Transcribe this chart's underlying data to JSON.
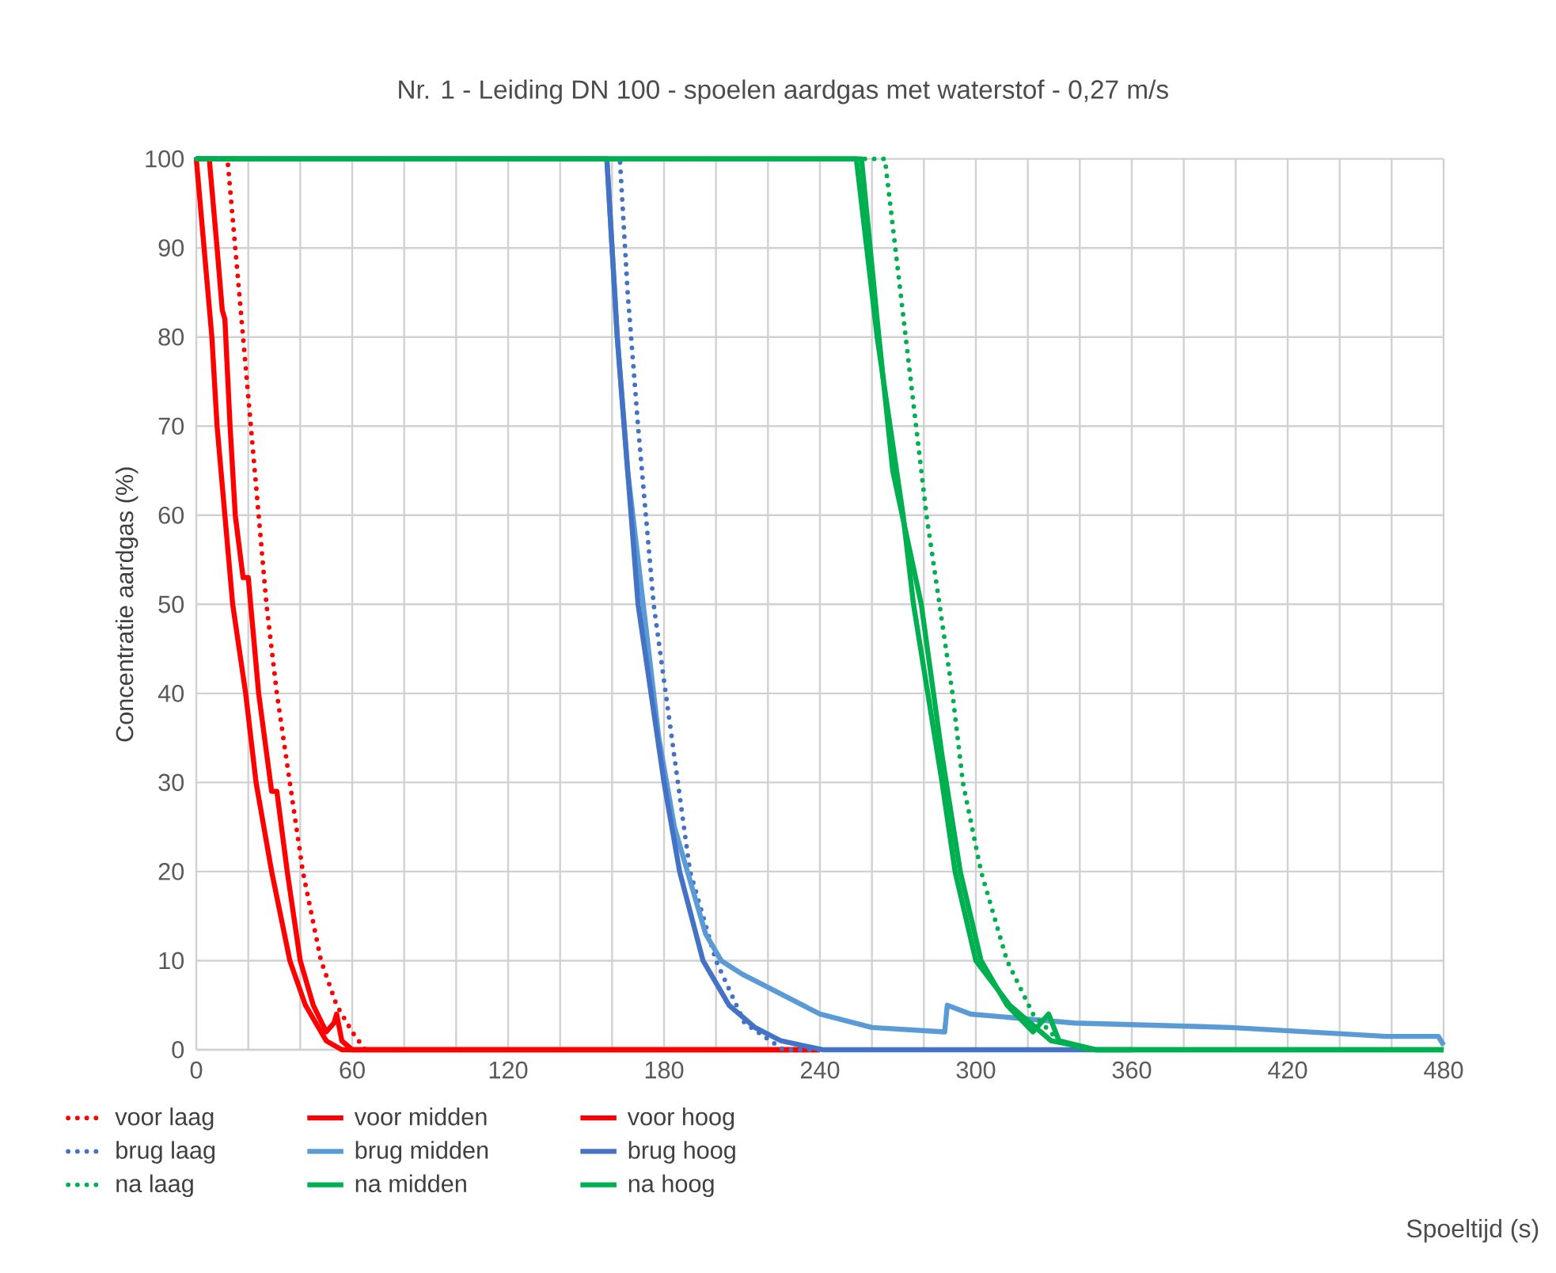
{
  "chart_data": {
    "type": "line",
    "title": "Nr. 1 - Leiding DN 100 - spoelen aardgas met waterstof - 0,27 m/s",
    "annotations": [
      "Spoeltijd (s)"
    ],
    "ylabel": "Concentratie aardgas (%)",
    "xlim": [
      0,
      480
    ],
    "ylim": [
      0,
      100
    ],
    "xticks": [
      0,
      {
        "value": 20,
        "label": null
      },
      {
        "value": 40,
        "label": null
      },
      60,
      {
        "value": 80,
        "label": null
      },
      {
        "value": 100,
        "label": null
      },
      120,
      {
        "value": 140,
        "label": null
      },
      {
        "value": 160,
        "label": null
      },
      180,
      {
        "value": 200,
        "label": null
      },
      {
        "value": 220,
        "label": null
      },
      240,
      {
        "value": 260,
        "label": null
      },
      {
        "value": 280,
        "label": null
      },
      300,
      {
        "value": 320,
        "label": null
      },
      {
        "value": 340,
        "label": null
      },
      360,
      {
        "value": 380,
        "label": null
      },
      {
        "value": 400,
        "label": null
      },
      420,
      {
        "value": 440,
        "label": null
      },
      {
        "value": 460,
        "label": null
      },
      480
    ],
    "yticks": [
      0,
      10,
      20,
      30,
      40,
      50,
      60,
      70,
      80,
      90,
      100
    ],
    "grid": true,
    "legend": "bottom",
    "marker": "none",
    "series": [
      {
        "name": "voor laag",
        "color": "#ff0000",
        "line_style": "dotted",
        "x": [
          0,
          12,
          15,
          18,
          21,
          24,
          27,
          31,
          36,
          41,
          48,
          54,
          60,
          65,
          80
        ],
        "values": [
          100,
          100,
          90,
          80,
          70,
          60,
          50,
          40,
          30,
          20,
          10,
          5,
          2,
          0,
          0
        ]
      },
      {
        "name": "voor midden",
        "color": "#ff0000",
        "line_style": "solid",
        "x": [
          0,
          5,
          8,
          10,
          11,
          13,
          15,
          18,
          20,
          24,
          29,
          31,
          35,
          40,
          45,
          50,
          53,
          54,
          56,
          60,
          240
        ],
        "values": [
          100,
          100,
          90,
          83,
          82,
          70,
          60,
          53,
          53,
          40,
          29,
          29,
          20,
          10,
          5,
          2,
          3,
          4,
          1,
          0,
          0
        ]
      },
      {
        "name": "voor hoog",
        "color": "#ff0000",
        "line_style": "solid",
        "x": [
          0,
          3,
          6,
          8,
          11,
          14,
          19,
          23,
          29,
          36,
          42,
          50,
          56,
          240
        ],
        "values": [
          100,
          90,
          80,
          70,
          60,
          50,
          40,
          30,
          20,
          10,
          5,
          1,
          0,
          0
        ]
      },
      {
        "name": "brug laag",
        "color": "#4472c4",
        "line_style": "dotted",
        "x": [
          0,
          163,
          166,
          170,
          176,
          183,
          190,
          200,
          211,
          226,
          240
        ],
        "values": [
          100,
          100,
          85,
          70,
          50,
          35,
          20,
          10,
          3,
          0,
          0
        ]
      },
      {
        "name": "brug midden",
        "color": "#5b9bd5",
        "line_style": "solid",
        "x": [
          0,
          158,
          162,
          166,
          172,
          178,
          184,
          189,
          196,
          202,
          210,
          220,
          240,
          260,
          288,
          289,
          298,
          338,
          398,
          458,
          478,
          480
        ],
        "values": [
          100,
          100,
          80,
          65,
          50,
          35,
          25,
          20,
          13,
          10,
          8.5,
          7,
          4,
          2.5,
          2,
          5,
          4,
          3,
          2.5,
          1.5,
          1.5,
          0.5
        ]
      },
      {
        "name": "brug  hoog",
        "color": "#4472c4",
        "line_style": "solid",
        "x": [
          0,
          158,
          162,
          170,
          180,
          186,
          195,
          205,
          215,
          225,
          241,
          360
        ],
        "values": [
          100,
          100,
          80,
          50,
          30,
          20,
          10,
          5,
          2.5,
          1,
          0,
          0
        ]
      },
      {
        "name": "na laag",
        "color": "#00b050",
        "line_style": "dotted",
        "x": [
          0,
          265,
          273,
          281,
          286,
          291,
          295,
          302,
          312,
          322,
          332,
          341,
          480
        ],
        "values": [
          100,
          100,
          80,
          60,
          50,
          40,
          30,
          20,
          10,
          4,
          1,
          0,
          0
        ]
      },
      {
        "name": "na midden",
        "color": "#00b050",
        "line_style": "solid",
        "x": [
          0,
          256,
          262,
          268,
          279,
          287,
          294,
          302,
          312,
          322,
          328,
          332,
          346,
          480
        ],
        "values": [
          100,
          100,
          82,
          65,
          50,
          33,
          20,
          10,
          5,
          2,
          4,
          1,
          0,
          0
        ]
      },
      {
        "name": "na hoog",
        "color": "#00b050",
        "line_style": "solid",
        "x": [
          0,
          254,
          262,
          272,
          276,
          287,
          292,
          300,
          313,
          329,
          346,
          480
        ],
        "values": [
          100,
          100,
          80,
          60,
          50,
          30,
          20,
          10,
          5,
          1,
          0,
          0
        ]
      }
    ]
  }
}
